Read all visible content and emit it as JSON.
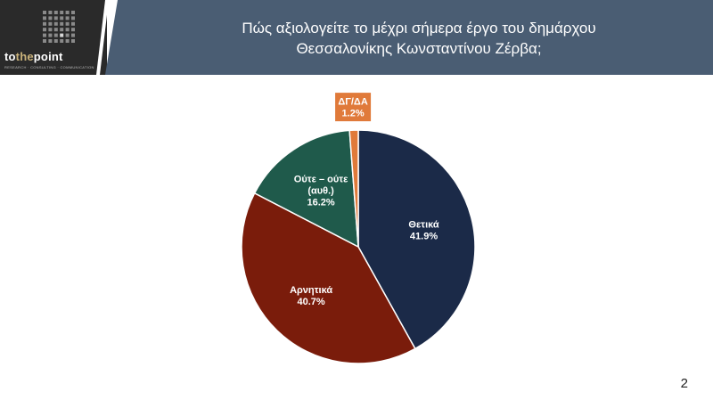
{
  "logo": {
    "word_a": "to",
    "word_b": "the",
    "word_c": "point",
    "tagline": "RESEARCH · CONSULTING · COMMUNICATION"
  },
  "header": {
    "title_line1": "Πώς αξιολογείτε το μέχρι σήμερα έργο του δημάρχου",
    "title_line2": "Θεσσαλονίκης Κωνσταντίνου Ζέρβα;"
  },
  "page_number": "2",
  "colors": {
    "header_bg": "#4a5d73",
    "positive": "#1b2a48",
    "negative": "#7a1c0b",
    "neutral": "#1f5a4b",
    "dk": "#e07a3a"
  },
  "chart_data": {
    "type": "pie",
    "title": "Πώς αξιολογείτε το μέχρι σήμερα έργο του δημάρχου Θεσσαλονίκης Κωνσταντίνου Ζέρβα;",
    "slices": [
      {
        "label_lines": [
          "Θετικά"
        ],
        "value": 41.9,
        "value_label": "41.9%",
        "color": "#1b2a48"
      },
      {
        "label_lines": [
          "Αρνητικά"
        ],
        "value": 40.7,
        "value_label": "40.7%",
        "color": "#7a1c0b"
      },
      {
        "label_lines": [
          "Ούτε – ούτε",
          "(αυθ.)"
        ],
        "value": 16.2,
        "value_label": "16.2%",
        "color": "#1f5a4b"
      },
      {
        "label_lines": [
          "ΔΓ/ΔΑ"
        ],
        "value": 1.2,
        "value_label": "1.2%",
        "color": "#e07a3a"
      }
    ]
  }
}
